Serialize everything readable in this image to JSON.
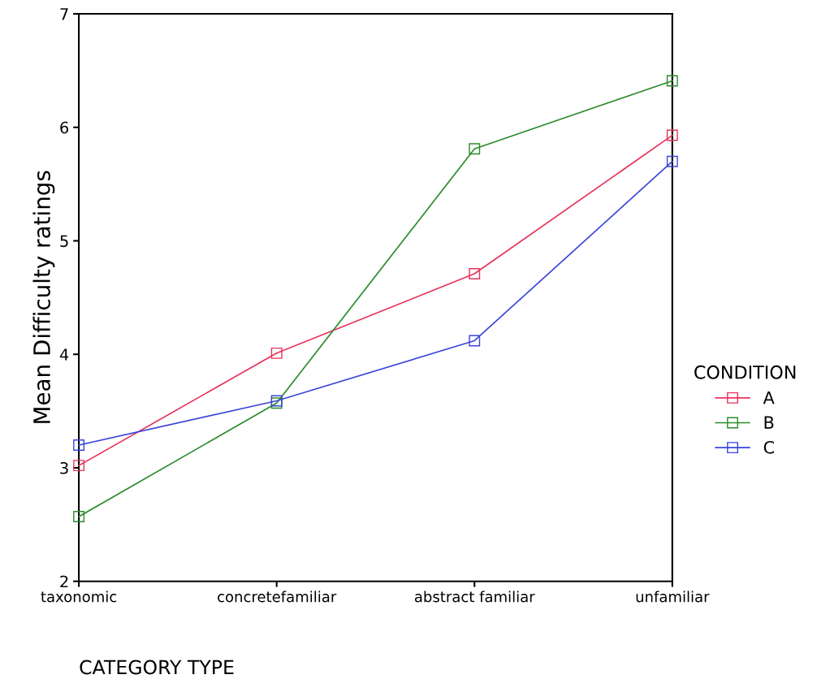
{
  "chart_data": {
    "type": "line",
    "xlabel": "CATEGORY TYPE",
    "ylabel": "Mean Difficulty ratings",
    "legend_title": "CONDITION",
    "categories": [
      "taxonomic",
      "concretefamiliar",
      "abstract familiar",
      "unfamiliar"
    ],
    "series": [
      {
        "name": "A",
        "color": "#e8335a",
        "values": [
          3.02,
          4.01,
          4.71,
          5.93
        ]
      },
      {
        "name": "B",
        "color": "#2a8a2a",
        "values": [
          2.57,
          3.57,
          5.81,
          6.41
        ]
      },
      {
        "name": "C",
        "color": "#3a45d8",
        "values": [
          3.2,
          3.59,
          4.12,
          5.7
        ]
      }
    ],
    "ylim": [
      2,
      7
    ],
    "yticks": [
      2,
      3,
      4,
      5,
      6,
      7
    ],
    "marker": "square",
    "line_style": "solid",
    "legend": "right",
    "grid": false
  }
}
